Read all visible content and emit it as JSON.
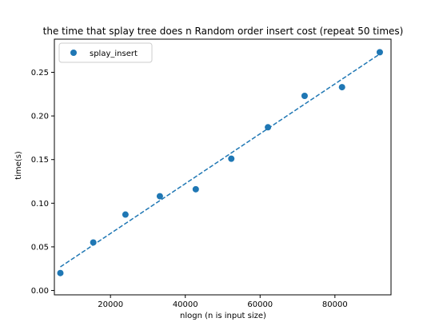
{
  "chart_data": {
    "type": "scatter",
    "title": "the time that splay tree does n Random order insert cost (repeat 50 times)",
    "xlabel": "nlogn (n is input size)",
    "ylabel": "time(s)",
    "xlim": [
      5000,
      95000
    ],
    "ylim": [
      -0.005,
      0.288
    ],
    "x_ticks": [
      20000,
      40000,
      60000,
      80000
    ],
    "x_tick_labels": [
      "20000",
      "40000",
      "60000",
      "80000"
    ],
    "y_ticks": [
      0.0,
      0.05,
      0.1,
      0.15,
      0.2,
      0.25
    ],
    "y_tick_labels": [
      "0.00",
      "0.05",
      "0.10",
      "0.15",
      "0.20",
      "0.25"
    ],
    "grid": false,
    "legend_position": "top-left",
    "series": [
      {
        "name": "splay_insert",
        "color": "#1f77b4",
        "marker": "circle",
        "x": [
          6600,
          15400,
          24000,
          33200,
          42800,
          52300,
          62100,
          71900,
          81900,
          92000
        ],
        "y": [
          0.02,
          0.055,
          0.087,
          0.108,
          0.116,
          0.151,
          0.187,
          0.223,
          0.233,
          0.273
        ]
      }
    ],
    "fit_line": {
      "style": "dashed",
      "color": "#1f77b4",
      "x": [
        6600,
        92000
      ],
      "y": [
        0.027,
        0.271
      ]
    }
  }
}
